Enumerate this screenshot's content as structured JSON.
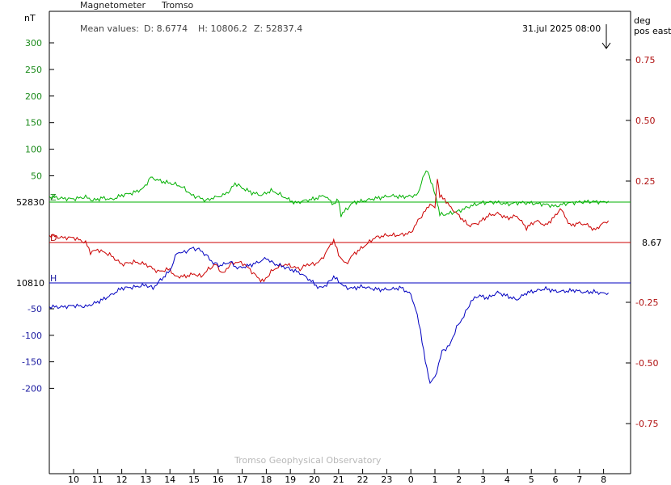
{
  "header": {
    "instrument": "Magnetometer",
    "station": "Tromso",
    "left_unit": "nT",
    "right_unit_line1": "deg",
    "right_unit_line2": "pos east",
    "mean_values_label": "Mean values:",
    "mean_D": "D: 8.6774",
    "mean_H": "H: 10806.2",
    "mean_Z": "Z: 52837.4",
    "timestamp": "31.jul 2025 08:00",
    "footer": "Tromso Geophysical Observatory"
  },
  "colors": {
    "Z": "#00b000",
    "D": "#cc0000",
    "H": "#0000c0",
    "axis": "#000000"
  },
  "chart_data": {
    "type": "line",
    "xlabel": "",
    "x_ticks": [
      "10",
      "11",
      "12",
      "13",
      "14",
      "15",
      "16",
      "17",
      "18",
      "19",
      "20",
      "21",
      "22",
      "23",
      "0",
      "1",
      "2",
      "3",
      "4",
      "5",
      "6",
      "7",
      "8"
    ],
    "x_range_hours": [
      9.0,
      32.7
    ],
    "left_axis": {
      "unit": "nT",
      "z_ticks": [
        "300",
        "250",
        "200",
        "150",
        "100",
        "50"
      ],
      "h_ticks": [
        "-50",
        "-100",
        "-150",
        "-200"
      ],
      "z_baseline_label": "52830",
      "h_baseline_label": "10810"
    },
    "right_axis": {
      "unit": "deg pos east",
      "ticks": [
        "0.75",
        "0.50",
        "0.25",
        "-0.25",
        "-0.50",
        "-0.75"
      ],
      "d_baseline_label": "8.67"
    },
    "series": [
      {
        "name": "Z",
        "baseline_nT": 52830,
        "points_hour_nT": [
          [
            9.0,
            52841
          ],
          [
            9.5,
            52837
          ],
          [
            10.0,
            52836
          ],
          [
            10.5,
            52840
          ],
          [
            10.8,
            52833
          ],
          [
            11.2,
            52838
          ],
          [
            11.6,
            52835
          ],
          [
            12.0,
            52843
          ],
          [
            12.5,
            52848
          ],
          [
            12.9,
            52856
          ],
          [
            13.2,
            52877
          ],
          [
            13.6,
            52870
          ],
          [
            14.0,
            52866
          ],
          [
            14.3,
            52863
          ],
          [
            14.6,
            52856
          ],
          [
            14.9,
            52843
          ],
          [
            15.2,
            52839
          ],
          [
            15.5,
            52833
          ],
          [
            15.8,
            52838
          ],
          [
            16.2,
            52843
          ],
          [
            16.5,
            52852
          ],
          [
            16.7,
            52866
          ],
          [
            17.0,
            52857
          ],
          [
            17.4,
            52848
          ],
          [
            17.8,
            52843
          ],
          [
            18.2,
            52852
          ],
          [
            18.5,
            52846
          ],
          [
            18.8,
            52838
          ],
          [
            19.2,
            52828
          ],
          [
            19.6,
            52833
          ],
          [
            20.0,
            52836
          ],
          [
            20.4,
            52843
          ],
          [
            20.8,
            52826
          ],
          [
            21.0,
            52834
          ],
          [
            21.1,
            52805
          ],
          [
            21.3,
            52815
          ],
          [
            21.6,
            52829
          ],
          [
            22.0,
            52832
          ],
          [
            22.4,
            52836
          ],
          [
            22.8,
            52839
          ],
          [
            23.2,
            52842
          ],
          [
            23.6,
            52840
          ],
          [
            24.0,
            52841
          ],
          [
            24.3,
            52845
          ],
          [
            24.5,
            52878
          ],
          [
            24.7,
            52890
          ],
          [
            24.9,
            52860
          ],
          [
            25.1,
            52830
          ],
          [
            25.2,
            52806
          ],
          [
            25.5,
            52807
          ],
          [
            26.0,
            52813
          ],
          [
            26.5,
            52823
          ],
          [
            27.0,
            52829
          ],
          [
            27.5,
            52830
          ],
          [
            28.0,
            52826
          ],
          [
            28.5,
            52829
          ],
          [
            29.0,
            52828
          ],
          [
            29.5,
            52826
          ],
          [
            30.0,
            52822
          ],
          [
            30.5,
            52828
          ],
          [
            31.0,
            52830
          ],
          [
            31.5,
            52831
          ],
          [
            32.0,
            52830
          ],
          [
            32.2,
            52832
          ]
        ]
      },
      {
        "name": "D",
        "baseline_deg": 8.67,
        "points_hour_deg": [
          [
            9.0,
            8.7
          ],
          [
            9.5,
            8.69
          ],
          [
            10.0,
            8.69
          ],
          [
            10.5,
            8.67
          ],
          [
            10.7,
            8.63
          ],
          [
            11.0,
            8.64
          ],
          [
            11.5,
            8.62
          ],
          [
            12.0,
            8.58
          ],
          [
            12.5,
            8.59
          ],
          [
            13.0,
            8.58
          ],
          [
            13.5,
            8.55
          ],
          [
            14.0,
            8.56
          ],
          [
            14.2,
            8.53
          ],
          [
            14.6,
            8.53
          ],
          [
            15.0,
            8.54
          ],
          [
            15.3,
            8.53
          ],
          [
            15.6,
            8.56
          ],
          [
            15.9,
            8.58
          ],
          [
            16.2,
            8.54
          ],
          [
            16.5,
            8.58
          ],
          [
            16.8,
            8.59
          ],
          [
            17.1,
            8.58
          ],
          [
            17.4,
            8.55
          ],
          [
            17.7,
            8.52
          ],
          [
            17.9,
            8.51
          ],
          [
            18.2,
            8.55
          ],
          [
            18.5,
            8.57
          ],
          [
            18.8,
            8.58
          ],
          [
            19.1,
            8.57
          ],
          [
            19.4,
            8.56
          ],
          [
            19.7,
            8.58
          ],
          [
            20.0,
            8.58
          ],
          [
            20.3,
            8.6
          ],
          [
            20.6,
            8.65
          ],
          [
            20.8,
            8.68
          ],
          [
            21.0,
            8.62
          ],
          [
            21.3,
            8.58
          ],
          [
            21.6,
            8.62
          ],
          [
            22.0,
            8.65
          ],
          [
            22.5,
            8.69
          ],
          [
            23.0,
            8.7
          ],
          [
            23.5,
            8.7
          ],
          [
            24.0,
            8.71
          ],
          [
            24.3,
            8.76
          ],
          [
            24.6,
            8.8
          ],
          [
            24.8,
            8.83
          ],
          [
            25.0,
            8.81
          ],
          [
            25.1,
            8.94
          ],
          [
            25.2,
            8.86
          ],
          [
            25.4,
            8.85
          ],
          [
            25.6,
            8.82
          ],
          [
            26.0,
            8.78
          ],
          [
            26.4,
            8.74
          ],
          [
            26.8,
            8.75
          ],
          [
            27.2,
            8.78
          ],
          [
            27.6,
            8.79
          ],
          [
            28.0,
            8.77
          ],
          [
            28.4,
            8.78
          ],
          [
            28.8,
            8.73
          ],
          [
            29.2,
            8.76
          ],
          [
            29.6,
            8.74
          ],
          [
            30.0,
            8.78
          ],
          [
            30.2,
            8.81
          ],
          [
            30.4,
            8.78
          ],
          [
            30.6,
            8.74
          ],
          [
            31.0,
            8.75
          ],
          [
            31.4,
            8.74
          ],
          [
            31.6,
            8.72
          ],
          [
            32.0,
            8.75
          ],
          [
            32.2,
            8.76
          ]
        ]
      },
      {
        "name": "H",
        "baseline_nT": 10810,
        "points_hour_nT": [
          [
            9.0,
            10765
          ],
          [
            9.5,
            10764
          ],
          [
            10.0,
            10767
          ],
          [
            10.5,
            10765
          ],
          [
            10.8,
            10770
          ],
          [
            11.2,
            10778
          ],
          [
            11.6,
            10788
          ],
          [
            12.0,
            10800
          ],
          [
            12.5,
            10802
          ],
          [
            13.0,
            10806
          ],
          [
            13.3,
            10800
          ],
          [
            13.6,
            10815
          ],
          [
            14.0,
            10833
          ],
          [
            14.3,
            10868
          ],
          [
            14.6,
            10868
          ],
          [
            14.9,
            10876
          ],
          [
            15.2,
            10874
          ],
          [
            15.5,
            10863
          ],
          [
            15.8,
            10848
          ],
          [
            16.1,
            10843
          ],
          [
            16.5,
            10850
          ],
          [
            16.8,
            10838
          ],
          [
            17.2,
            10842
          ],
          [
            17.6,
            10848
          ],
          [
            18.0,
            10857
          ],
          [
            18.3,
            10847
          ],
          [
            18.7,
            10841
          ],
          [
            19.0,
            10836
          ],
          [
            19.4,
            10829
          ],
          [
            19.8,
            10816
          ],
          [
            20.2,
            10800
          ],
          [
            20.5,
            10806
          ],
          [
            20.8,
            10822
          ],
          [
            21.0,
            10813
          ],
          [
            21.3,
            10801
          ],
          [
            21.6,
            10800
          ],
          [
            22.0,
            10803
          ],
          [
            22.4,
            10799
          ],
          [
            22.8,
            10797
          ],
          [
            23.2,
            10798
          ],
          [
            23.6,
            10801
          ],
          [
            24.0,
            10788
          ],
          [
            24.2,
            10760
          ],
          [
            24.4,
            10720
          ],
          [
            24.6,
            10660
          ],
          [
            24.8,
            10620
          ],
          [
            25.0,
            10630
          ],
          [
            25.3,
            10680
          ],
          [
            25.6,
            10690
          ],
          [
            25.9,
            10725
          ],
          [
            26.2,
            10747
          ],
          [
            26.5,
            10775
          ],
          [
            26.8,
            10786
          ],
          [
            27.2,
            10781
          ],
          [
            27.6,
            10792
          ],
          [
            28.0,
            10785
          ],
          [
            28.4,
            10778
          ],
          [
            28.8,
            10791
          ],
          [
            29.2,
            10795
          ],
          [
            29.6,
            10799
          ],
          [
            30.0,
            10794
          ],
          [
            30.4,
            10794
          ],
          [
            30.8,
            10796
          ],
          [
            31.2,
            10792
          ],
          [
            31.6,
            10793
          ],
          [
            32.0,
            10790
          ],
          [
            32.2,
            10791
          ]
        ]
      }
    ],
    "grid": false
  }
}
